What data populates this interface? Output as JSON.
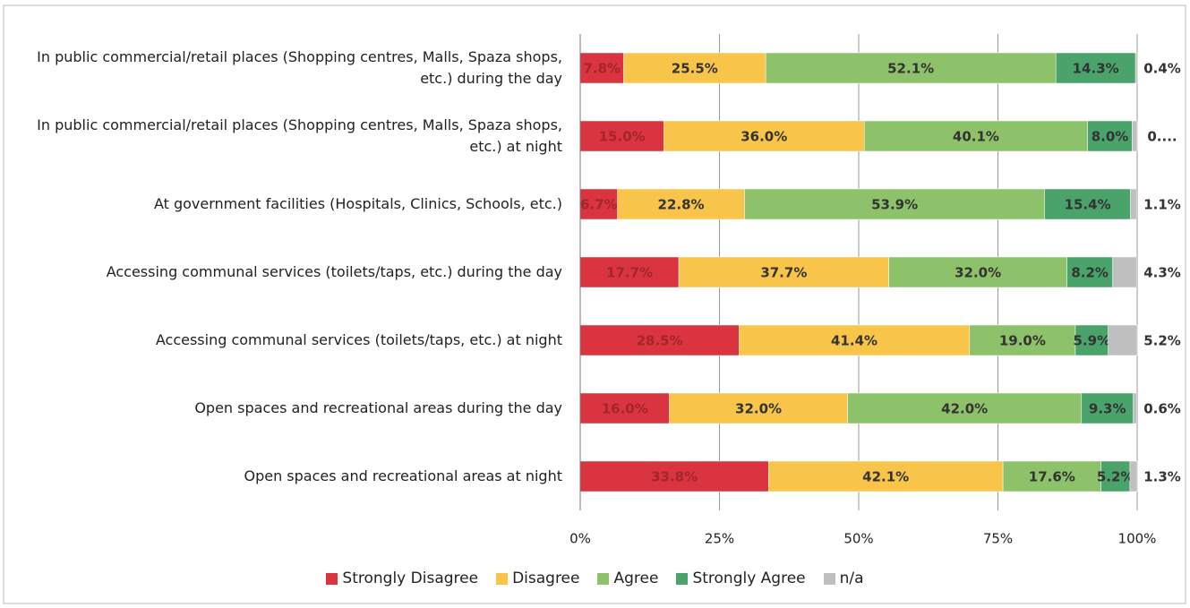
{
  "chart_data": {
    "type": "stacked_bar_horizontal",
    "categories": [
      "In public commercial/retail places (Shopping centres, Malls, Spaza shops, etc.) during the day",
      "In public commercial/retail places (Shopping centres, Malls, Spaza shops, etc.) at night",
      "At government facilities (Hospitals, Clinics, Schools, etc.)",
      "Accessing communal services (toilets/taps, etc.) during the day",
      "Accessing communal services (toilets/taps, etc.) at night",
      "Open spaces and recreational areas during the day",
      "Open spaces and recreational areas at night"
    ],
    "series": [
      {
        "name": "Strongly Disagree",
        "color": "#d9343f",
        "values": [
          7.8,
          15.0,
          6.7,
          17.7,
          28.5,
          16.0,
          33.8
        ],
        "value_labels": [
          "7.8%",
          "15.0%",
          "6.7%",
          "17.7%",
          "28.5%",
          "16.0%",
          "33.8%"
        ]
      },
      {
        "name": "Disagree",
        "color": "#f8c54a",
        "values": [
          25.5,
          36.0,
          22.8,
          37.7,
          41.4,
          32.0,
          42.1
        ],
        "value_labels": [
          "25.5%",
          "36.0%",
          "22.8%",
          "37.7%",
          "41.4%",
          "32.0%",
          "42.1%"
        ]
      },
      {
        "name": "Agree",
        "color": "#8dc26a",
        "values": [
          52.1,
          40.1,
          53.9,
          32.0,
          19.0,
          42.0,
          17.6
        ],
        "value_labels": [
          "52.1%",
          "40.1%",
          "53.9%",
          "32.0%",
          "19.0%",
          "42.0%",
          "17.6%"
        ]
      },
      {
        "name": "Strongly Agree",
        "color": "#4aa36b",
        "values": [
          14.3,
          8.0,
          15.4,
          8.2,
          5.9,
          9.3,
          5.2
        ],
        "value_labels": [
          "14.3%",
          "8.0%",
          "15.4%",
          "8.2%",
          "5.9%",
          "9.3%",
          "5.2%"
        ]
      },
      {
        "name": "n/a",
        "color": "#bfbfbf",
        "values": [
          0.4,
          0.9,
          1.1,
          4.3,
          5.2,
          0.6,
          1.3
        ],
        "value_labels": [
          "0.4%",
          "0....",
          "1.1%",
          "4.3%",
          "5.2%",
          "0.6%",
          "1.3%"
        ]
      }
    ],
    "xlim": [
      0,
      100
    ],
    "xticks": [
      {
        "value": 0,
        "label": "0%"
      },
      {
        "value": 25,
        "label": "25%"
      },
      {
        "value": 50,
        "label": "50%"
      },
      {
        "value": 75,
        "label": "75%"
      },
      {
        "value": 100,
        "label": "100%"
      }
    ],
    "grid": true,
    "legend": "bottom"
  }
}
